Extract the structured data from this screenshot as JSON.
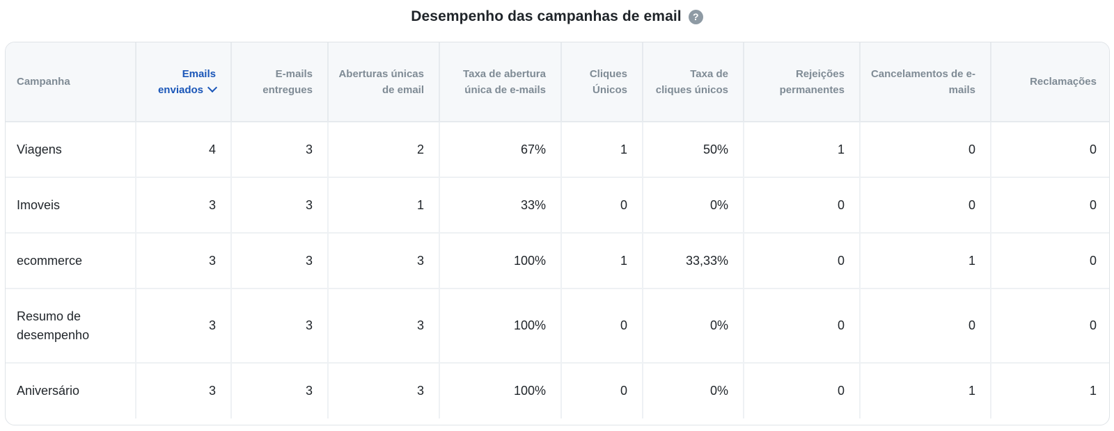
{
  "header": {
    "title": "Desempenho das campanhas de email",
    "help_icon": "question-circle-icon"
  },
  "table": {
    "columns": [
      {
        "label": "Campanha",
        "key": "campanha"
      },
      {
        "label": "Emails enviados",
        "key": "emails_enviados",
        "sorted": true,
        "sort_direction": "desc"
      },
      {
        "label": "E-mails entregues",
        "key": "emails_entregues"
      },
      {
        "label": "Aberturas únicas de email",
        "key": "aberturas_unicas"
      },
      {
        "label": "Taxa de abertura única de e-mails",
        "key": "taxa_abertura"
      },
      {
        "label": "Cliques Únicos",
        "key": "cliques_unicos"
      },
      {
        "label": "Taxa de cliques únicos",
        "key": "taxa_cliques"
      },
      {
        "label": "Rejeições permanentes",
        "key": "rejeicoes"
      },
      {
        "label": "Cancelamentos de e-mails",
        "key": "cancelamentos"
      },
      {
        "label": "Reclamações",
        "key": "reclamacoes"
      }
    ],
    "rows": [
      [
        "Viagens",
        "4",
        "3",
        "2",
        "67%",
        "1",
        "50%",
        "1",
        "0",
        "0"
      ],
      [
        "Imoveis",
        "3",
        "3",
        "1",
        "33%",
        "0",
        "0%",
        "0",
        "0",
        "0"
      ],
      [
        "ecommerce",
        "3",
        "3",
        "3",
        "100%",
        "1",
        "33,33%",
        "0",
        "1",
        "0"
      ],
      [
        "Resumo de desempenho",
        "3",
        "3",
        "3",
        "100%",
        "0",
        "0%",
        "0",
        "0",
        "0"
      ],
      [
        "Aniversário",
        "3",
        "3",
        "3",
        "100%",
        "0",
        "0%",
        "0",
        "1",
        "1"
      ]
    ]
  },
  "colors": {
    "accent": "#1a56b8",
    "header_text": "#7f8b95",
    "header_bg": "#f6f8fa",
    "border": "#e6eaee"
  }
}
